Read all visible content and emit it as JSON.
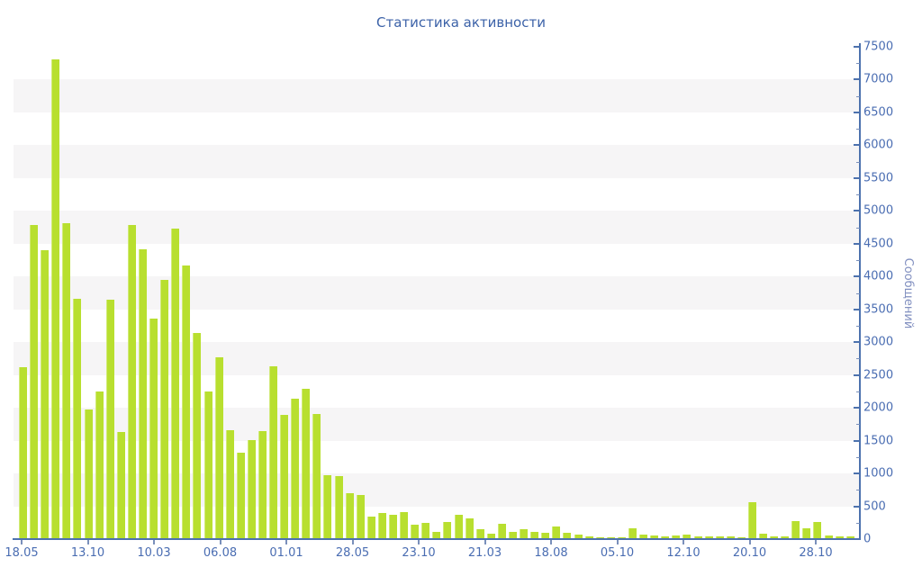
{
  "title": "Статистика активности",
  "colors": {
    "bar": "#b8df2f",
    "axis": "#4d72ae",
    "band": "#f6f5f6",
    "title_text": "#3c62a8",
    "tick_text": "#4a6db2",
    "y_axis_title_text": "#8290c0",
    "background": "#ffffff"
  },
  "chart_data": {
    "type": "bar",
    "title": "Статистика активности",
    "xlabel": "",
    "ylabel": "Сообщений",
    "ylim": [
      0,
      7500
    ],
    "ytick_step": 500,
    "ytick_minor_step": 250,
    "grid": "alternating horizontal bands every 500 units",
    "legend": "none",
    "y_axis_side": "right",
    "y_tick_labels": [
      "0",
      "500",
      "1000",
      "1500",
      "2000",
      "2500",
      "3000",
      "3500",
      "4000",
      "4500",
      "5000",
      "5500",
      "6000",
      "6500",
      "7000",
      "7500"
    ],
    "x_tick_labels": [
      "18.05",
      "13.10",
      "10.03",
      "06.08",
      "01.01",
      "28.05",
      "23.10",
      "21.03",
      "18.08",
      "05.10",
      "12.10",
      "20.10",
      "28.10"
    ],
    "x_ticks_every_n_bars": 6,
    "values": [
      2600,
      4770,
      4390,
      7300,
      4800,
      3650,
      1960,
      2240,
      3640,
      1620,
      4770,
      4400,
      3340,
      3930,
      4720,
      4160,
      3130,
      2230,
      2750,
      1650,
      1300,
      1500,
      1630,
      2620,
      1880,
      2120,
      2280,
      1890,
      960,
      940,
      690,
      660,
      330,
      380,
      350,
      395,
      200,
      230,
      95,
      240,
      350,
      300,
      137,
      64,
      225,
      100,
      137,
      100,
      78,
      178,
      85,
      55,
      32,
      18,
      18,
      9,
      146,
      55,
      41,
      32,
      41,
      55,
      32,
      32,
      23,
      32,
      18,
      550,
      64,
      23,
      32,
      261,
      151,
      252,
      41,
      23,
      27
    ]
  }
}
